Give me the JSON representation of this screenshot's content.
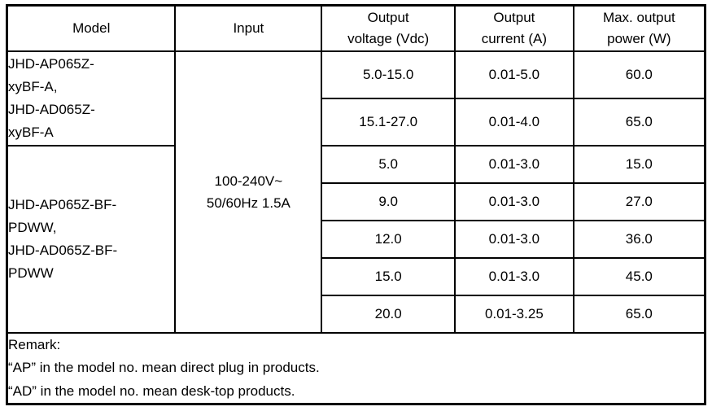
{
  "table": {
    "headers": {
      "model": "Model",
      "input": "Input",
      "voltage": "Output\nvoltage (Vdc)",
      "current": "Output\ncurrent (A)",
      "power": "Max. output\npower (W)"
    },
    "model_groups": [
      {
        "models": "JHD-AP065Z-\nxyBF-A,\nJHD-AD065Z-\nxyBF-A"
      },
      {
        "models": "JHD-AP065Z-BF-\nPDWW,\nJHD-AD065Z-BF-\nPDWW"
      }
    ],
    "input_value": "100-240V~\n50/60Hz 1.5A",
    "rows": [
      {
        "voltage": "5.0-15.0",
        "current": "0.01-5.0",
        "power": "60.0"
      },
      {
        "voltage": "15.1-27.0",
        "current": "0.01-4.0",
        "power": "65.0"
      },
      {
        "voltage": "5.0",
        "current": "0.01-3.0",
        "power": "15.0"
      },
      {
        "voltage": "9.0",
        "current": "0.01-3.0",
        "power": "27.0"
      },
      {
        "voltage": "12.0",
        "current": "0.01-3.0",
        "power": "36.0"
      },
      {
        "voltage": "15.0",
        "current": "0.01-3.0",
        "power": "45.0"
      },
      {
        "voltage": "20.0",
        "current": "0.01-3.25",
        "power": "65.0"
      }
    ],
    "remark": {
      "lines": [
        "Remark:",
        "“AP” in the model no. mean direct plug in products.",
        "“AD” in the model no. mean desk-top products."
      ]
    }
  }
}
